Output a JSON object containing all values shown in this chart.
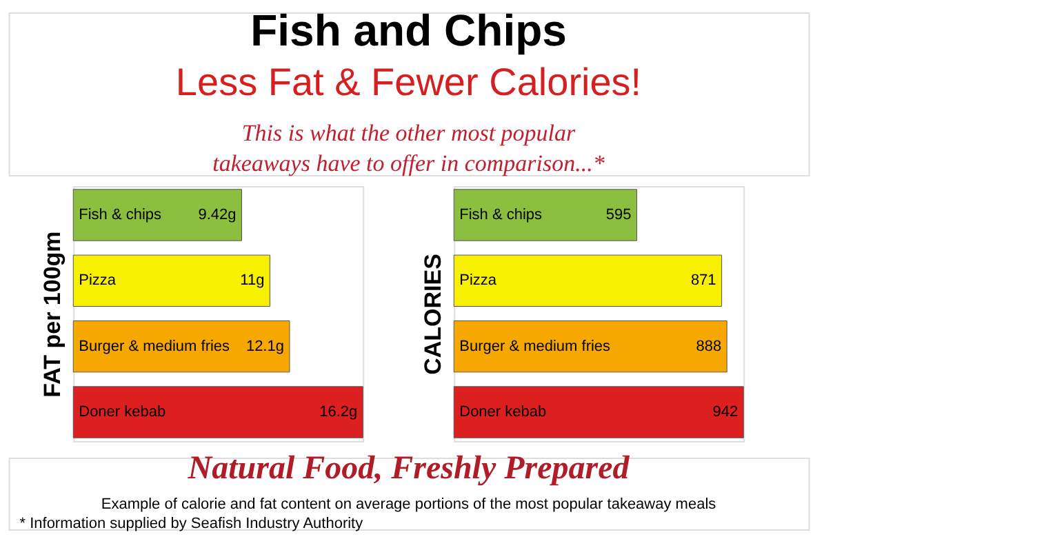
{
  "chart_data": [
    {
      "type": "bar",
      "orientation": "horizontal",
      "title": "Fish and Chips",
      "subtitle": "Less Fat & Fewer Calories!",
      "annotations": [
        "This is what the other most popular takeaways have to offer in comparison...*",
        "Natural Food, Freshly Prepared",
        "Example of calorie and fat content on average portions of the most popular takeaway meals",
        "* Information supplied by Seafish Industry Authority"
      ],
      "ylabel": "FAT per 100gm",
      "categories": [
        "Fish & chips",
        "Pizza",
        "Burger & medium fries",
        "Doner kebab"
      ],
      "values": [
        9.42,
        11,
        12.1,
        16.2
      ],
      "value_labels": [
        "9.42g",
        "11g",
        "12.1g",
        "16.2g"
      ],
      "colors": [
        "#8cbf3f",
        "#f7f000",
        "#f7a800",
        "#dc1f1f"
      ],
      "tick_labels": false
    },
    {
      "type": "bar",
      "orientation": "horizontal",
      "ylabel": "CALORIES",
      "categories": [
        "Fish & chips",
        "Pizza",
        "Burger & medium fries",
        "Doner kebab"
      ],
      "values": [
        595,
        871,
        888,
        942
      ],
      "data_labels": true,
      "colors": [
        "#8cbf3f",
        "#f7f000",
        "#f7a800",
        "#dc1f1f"
      ],
      "tick_labels": false
    }
  ]
}
